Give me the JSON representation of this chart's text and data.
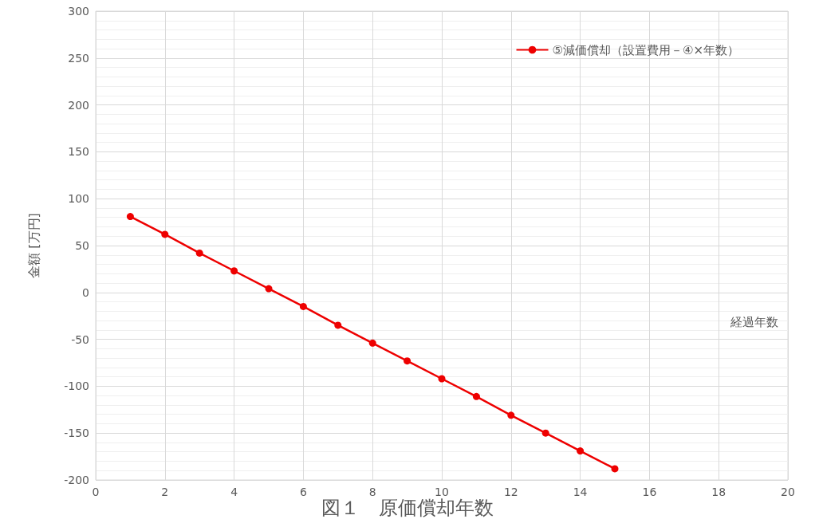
{
  "chart_data": {
    "type": "line",
    "title": "図１　原価償却年数",
    "xlabel": "経過年数",
    "ylabel": "金額 [万円]",
    "x": [
      1,
      2,
      3,
      4,
      5,
      6,
      7,
      8,
      9,
      10,
      11,
      12,
      13,
      14,
      15
    ],
    "series": [
      {
        "name": "⑤減価償却（設置費用－④×年数）",
        "color": "#ee0000",
        "values": [
          81,
          62,
          42,
          23,
          4,
          -15,
          -35,
          -54,
          -73,
          -92,
          -111,
          -131,
          -150,
          -169,
          -188
        ]
      }
    ],
    "xlim": [
      0,
      20
    ],
    "xticks": [
      0,
      2,
      4,
      6,
      8,
      10,
      12,
      14,
      16,
      18,
      20
    ],
    "ylim": [
      -200,
      300
    ],
    "yticks": [
      -200,
      -150,
      -100,
      -50,
      0,
      50,
      100,
      150,
      200,
      250,
      300
    ],
    "grid": true,
    "legend": "top right",
    "marker": "circle",
    "line_style": "solid"
  }
}
